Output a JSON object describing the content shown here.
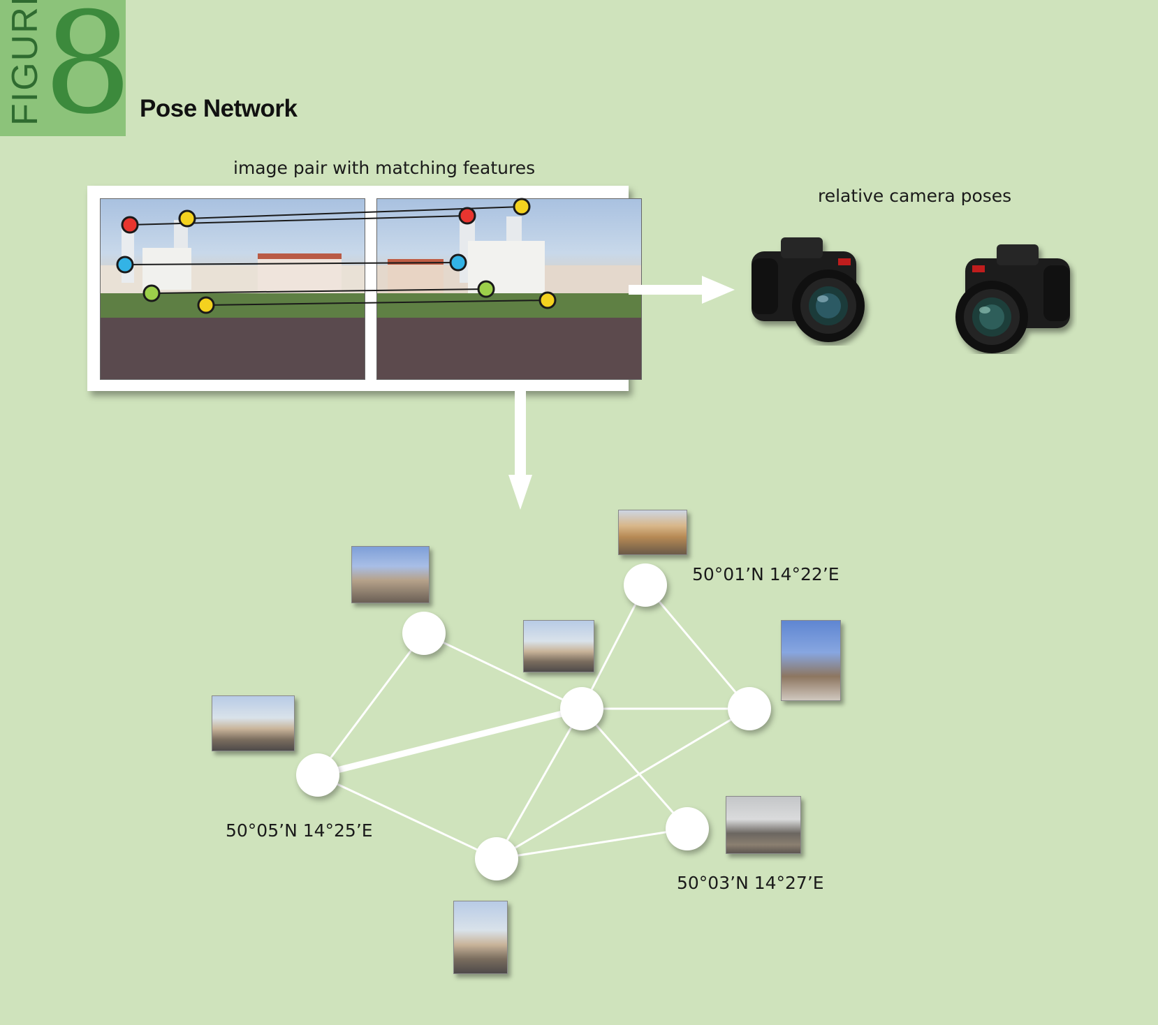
{
  "figure": {
    "word": "FIGURE",
    "number": "8",
    "title": "Pose Network"
  },
  "labels": {
    "image_pair": "image pair with matching features",
    "camera_poses": "relative camera poses"
  },
  "coordinates": {
    "top_node": "50°01’N 14°22’E",
    "left_node": "50°05’N 14°25’E",
    "bottom_right_node": "50°03’N 14°27’E"
  },
  "colors": {
    "background": "#cfe3bc",
    "figure_box": "#8cc37a",
    "figure_text": "#2f6b30",
    "feature_red": "#e8352f",
    "feature_yellow": "#f4d21f",
    "feature_blue": "#33b3e6",
    "feature_green": "#9ccf4a",
    "network": "#ffffff"
  },
  "icons": {
    "camera": "dslr-camera-icon",
    "arrow": "arrow-icon"
  }
}
